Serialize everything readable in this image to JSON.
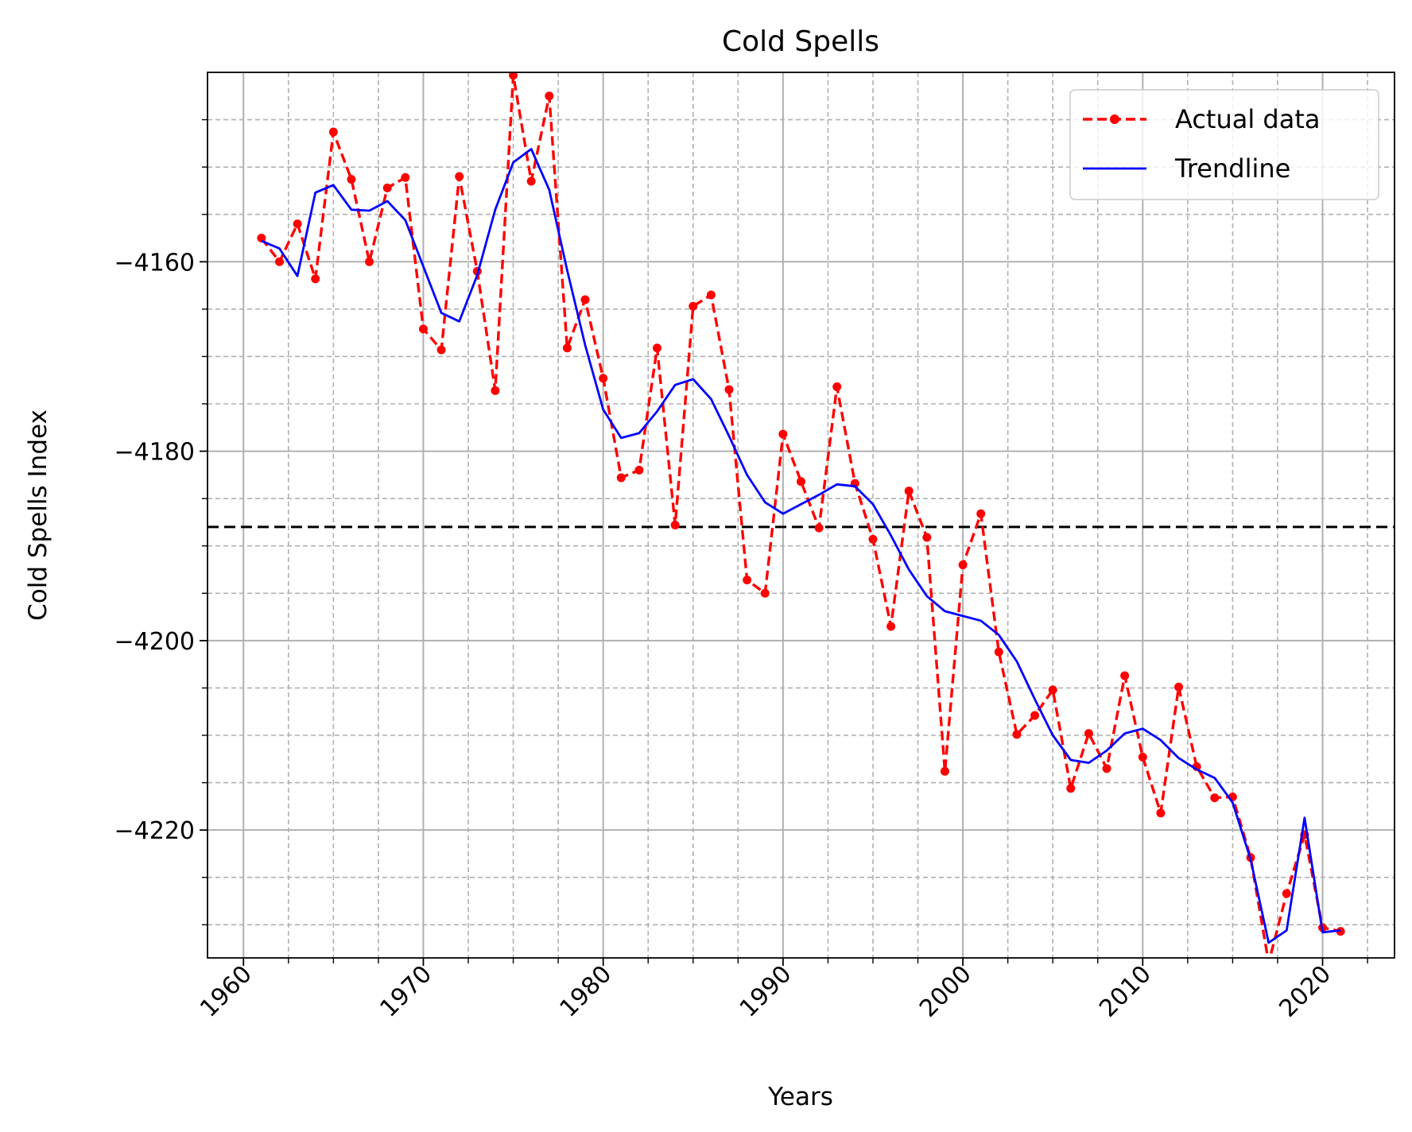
{
  "chart_data": {
    "type": "line",
    "title": "Cold Spells",
    "xlabel": "Years",
    "ylabel": "Cold Spells Index",
    "xlim": [
      1958,
      2024
    ],
    "ylim": [
      -4233.5,
      -4140
    ],
    "x_ticks": [
      1960,
      1970,
      1980,
      1990,
      2000,
      2010,
      2020
    ],
    "y_ticks": [
      -4160,
      -4180,
      -4200,
      -4220
    ],
    "grid": true,
    "minor_grid": true,
    "legend_position": "top-right",
    "reference_line": -4188,
    "x": [
      1961,
      1962,
      1963,
      1964,
      1965,
      1966,
      1967,
      1968,
      1969,
      1970,
      1971,
      1972,
      1973,
      1974,
      1975,
      1976,
      1977,
      1978,
      1979,
      1980,
      1981,
      1982,
      1983,
      1984,
      1985,
      1986,
      1987,
      1988,
      1989,
      1990,
      1991,
      1992,
      1993,
      1994,
      1995,
      1996,
      1997,
      1998,
      1999,
      2000,
      2001,
      2002,
      2003,
      2004,
      2005,
      2006,
      2007,
      2008,
      2009,
      2010,
      2011,
      2012,
      2013,
      2014,
      2015,
      2016,
      2017,
      2018,
      2019,
      2020,
      2021
    ],
    "series": [
      {
        "name": "Actual data",
        "color": "#ff0000",
        "style": "dashed-markers",
        "values": [
          -4157.5,
          -4160.0,
          -4156.0,
          -4161.8,
          -4146.3,
          -4151.3,
          -4160.0,
          -4152.2,
          -4151.1,
          -4167.1,
          -4169.3,
          -4151.0,
          -4161.0,
          -4173.6,
          -4140.3,
          -4151.5,
          -4142.5,
          -4169.1,
          -4164.0,
          -4172.3,
          -4182.8,
          -4182.0,
          -4169.1,
          -4187.8,
          -4164.7,
          -4163.5,
          -4173.5,
          -4193.6,
          -4195.0,
          -4178.2,
          -4183.2,
          -4188.1,
          -4173.2,
          -4183.4,
          -4189.3,
          -4198.5,
          -4184.2,
          -4189.1,
          -4213.8,
          -4192.0,
          -4186.6,
          -4201.2,
          -4209.9,
          -4207.9,
          -4205.2,
          -4215.6,
          -4209.8,
          -4213.5,
          -4203.7,
          -4212.3,
          -4218.2,
          -4204.9,
          -4213.3,
          -4216.6,
          -4216.5,
          -4222.9,
          -4234.0,
          -4226.7,
          -4220.5,
          -4230.3,
          -4230.7
        ]
      },
      {
        "name": "Trendline",
        "color": "#0000ff",
        "style": "solid",
        "values": [
          -4157.8,
          -4158.6,
          -4161.5,
          -4152.7,
          -4151.9,
          -4154.5,
          -4154.6,
          -4153.6,
          -4155.6,
          -4160.5,
          -4165.4,
          -4166.3,
          -4161.4,
          -4154.5,
          -4149.5,
          -4148.1,
          -4152.4,
          -4160.9,
          -4168.8,
          -4175.6,
          -4178.6,
          -4178.1,
          -4175.8,
          -4173.0,
          -4172.4,
          -4174.5,
          -4178.4,
          -4182.5,
          -4185.4,
          -4186.6,
          -4185.6,
          -4184.6,
          -4183.5,
          -4183.7,
          -4185.6,
          -4188.9,
          -4192.5,
          -4195.3,
          -4196.9,
          -4197.4,
          -4197.9,
          -4199.4,
          -4202.2,
          -4206.2,
          -4210.0,
          -4212.6,
          -4212.9,
          -4211.6,
          -4209.8,
          -4209.3,
          -4210.5,
          -4212.4,
          -4213.6,
          -4214.5,
          -4217.1,
          -4223.1,
          -4231.9,
          -4230.6,
          -4218.7,
          -4230.8,
          -4230.6
        ]
      }
    ]
  }
}
